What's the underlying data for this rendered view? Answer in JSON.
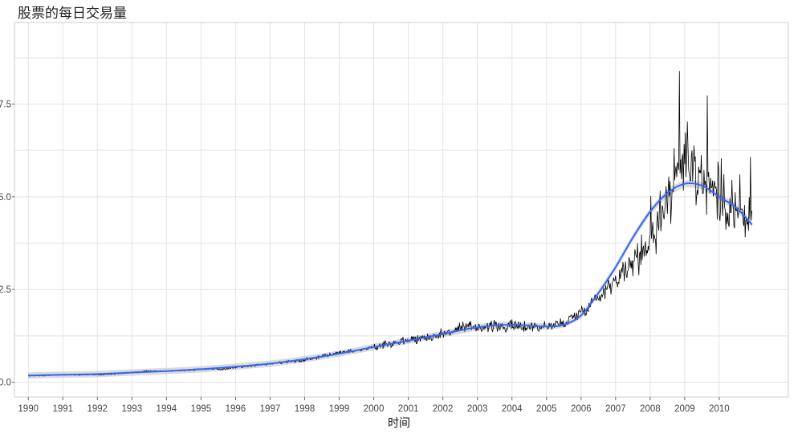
{
  "chart_data": {
    "type": "line",
    "title": "股票的每日交易量",
    "xlabel": "时间",
    "ylabel": "",
    "x_tick_labels": [
      "1990",
      "1991",
      "1992",
      "1993",
      "1994",
      "1995",
      "1996",
      "1997",
      "1998",
      "1999",
      "2000",
      "2001",
      "2002",
      "2003",
      "2004",
      "2005",
      "2006",
      "2007",
      "2008",
      "2009",
      "2010"
    ],
    "y_tick_labels": [
      "0.0",
      "2.5",
      "5.0",
      "7.5"
    ],
    "xlim": [
      1989.6,
      2012.0
    ],
    "ylim": [
      -0.4,
      9.7
    ],
    "grid": true,
    "legend": "none",
    "colors": {
      "raw": "#000000",
      "smooth": "#3366ff",
      "band": "#bdbdbd"
    },
    "series": [
      {
        "values_x": [
          1990.0,
          1990.5,
          1991.0,
          1991.5,
          1992.0,
          1992.5,
          1993.0,
          1993.5,
          1994.0,
          1994.5,
          1995.0,
          1995.5,
          1996.0,
          1996.5,
          1997.0,
          1997.5,
          1998.0,
          1998.5,
          1999.0,
          1999.5,
          2000.0,
          2000.5,
          2001.0,
          2001.5,
          2002.0,
          2002.5,
          2003.0,
          2003.5,
          2004.0,
          2004.5,
          2005.0,
          2005.5,
          2006.0,
          2006.5,
          2007.0,
          2007.5,
          2008.0,
          2008.5,
          2009.0,
          2009.5,
          2010.0,
          2010.5,
          2010.95
        ],
        "values_y": [
          0.17,
          0.18,
          0.2,
          0.2,
          0.2,
          0.22,
          0.26,
          0.3,
          0.3,
          0.32,
          0.35,
          0.35,
          0.4,
          0.45,
          0.5,
          0.55,
          0.6,
          0.7,
          0.8,
          0.85,
          0.95,
          1.05,
          1.15,
          1.2,
          1.3,
          1.45,
          1.5,
          1.5,
          1.5,
          1.5,
          1.5,
          1.6,
          1.9,
          2.3,
          2.8,
          3.2,
          3.9,
          5.0,
          6.0,
          5.5,
          5.0,
          4.6,
          4.3
        ]
      },
      {
        "values_x": [
          1990.0,
          1991.0,
          1992.0,
          1993.0,
          1994.0,
          1995.0,
          1996.0,
          1997.0,
          1998.0,
          1999.0,
          2000.0,
          2001.0,
          2002.0,
          2003.0,
          2004.0,
          2005.0,
          2005.5,
          2006.0,
          2006.5,
          2007.0,
          2007.5,
          2008.0,
          2008.5,
          2009.0,
          2009.5,
          2010.0,
          2010.5,
          2010.95
        ],
        "values_y": [
          0.18,
          0.2,
          0.22,
          0.26,
          0.3,
          0.35,
          0.42,
          0.5,
          0.62,
          0.77,
          0.95,
          1.12,
          1.3,
          1.48,
          1.55,
          1.5,
          1.55,
          1.8,
          2.4,
          3.1,
          3.9,
          4.6,
          5.1,
          5.35,
          5.3,
          5.0,
          4.7,
          4.25
        ]
      }
    ]
  }
}
